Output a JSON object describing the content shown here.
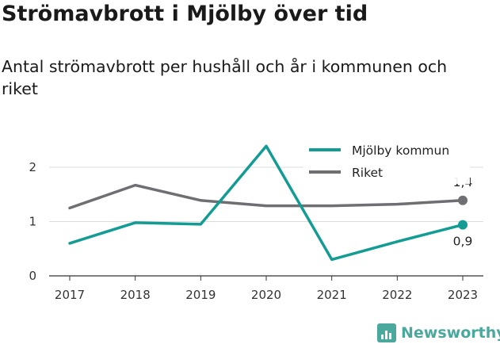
{
  "header": {
    "title": "Strömavbrott i Mjölby över tid",
    "subtitle": "Antal strömavbrott per hushåll och år i kommunen och riket"
  },
  "chart_data": {
    "type": "line",
    "title": "Strömavbrott i Mjölby över tid",
    "subtitle": "Antal strömavbrott per hushåll och år i kommunen och riket",
    "x": [
      "2017",
      "2018",
      "2019",
      "2020",
      "2021",
      "2022",
      "2023"
    ],
    "ylim": [
      0,
      2.5
    ],
    "yticks": [
      "0",
      "1",
      "2"
    ],
    "ytick_values": [
      0,
      1,
      2
    ],
    "grid": true,
    "legend": "top-right",
    "series": [
      {
        "name": "Mjölby kommun",
        "color": "#129c94",
        "values": [
          0.6,
          0.98,
          0.95,
          2.39,
          0.3,
          0.63,
          0.94
        ],
        "end_label": "0,9"
      },
      {
        "name": "Riket",
        "color": "#6e6e73",
        "values": [
          1.25,
          1.67,
          1.39,
          1.29,
          1.29,
          1.32,
          1.39
        ],
        "end_label": "1,4"
      }
    ]
  },
  "brand": {
    "name": "Newsworthy",
    "color": "#4aa89c"
  }
}
